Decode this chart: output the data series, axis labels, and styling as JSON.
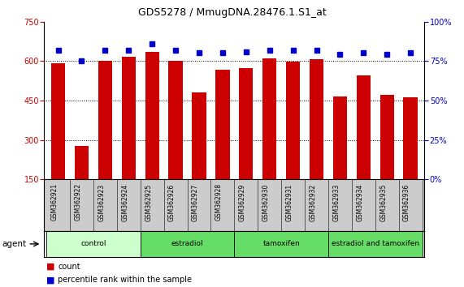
{
  "title": "GDS5278 / MmugDNA.28476.1.S1_at",
  "samples": [
    "GSM362921",
    "GSM362922",
    "GSM362923",
    "GSM362924",
    "GSM362925",
    "GSM362926",
    "GSM362927",
    "GSM362928",
    "GSM362929",
    "GSM362930",
    "GSM362931",
    "GSM362932",
    "GSM362933",
    "GSM362934",
    "GSM362935",
    "GSM362936"
  ],
  "counts": [
    590,
    277,
    600,
    615,
    635,
    600,
    480,
    568,
    572,
    610,
    598,
    608,
    465,
    545,
    470,
    462
  ],
  "percentile_ranks": [
    82,
    75,
    82,
    82,
    86,
    82,
    80,
    80,
    81,
    82,
    82,
    82,
    79,
    80,
    79,
    80
  ],
  "groups": [
    {
      "name": "control",
      "start": 0,
      "end": 4,
      "color": "#ccffcc"
    },
    {
      "name": "estradiol",
      "start": 4,
      "end": 8,
      "color": "#66dd66"
    },
    {
      "name": "tamoxifen",
      "start": 8,
      "end": 12,
      "color": "#66dd66"
    },
    {
      "name": "estradiol and tamoxifen",
      "start": 12,
      "end": 16,
      "color": "#66dd66"
    }
  ],
  "bar_color": "#cc0000",
  "dot_color": "#0000cc",
  "ylim_left": [
    150,
    750
  ],
  "ylim_right": [
    0,
    100
  ],
  "yticks_left": [
    150,
    300,
    450,
    600,
    750
  ],
  "yticks_right": [
    0,
    25,
    50,
    75,
    100
  ],
  "grid_lines": [
    300,
    450,
    600
  ],
  "background_color": "#ffffff",
  "title_fontsize": 9,
  "tick_fontsize": 7,
  "label_color_left": "#cc0000",
  "label_color_right": "#0000cc",
  "cell_bg": "#cccccc",
  "figwidth": 5.71,
  "figheight": 3.54,
  "dpi": 100
}
